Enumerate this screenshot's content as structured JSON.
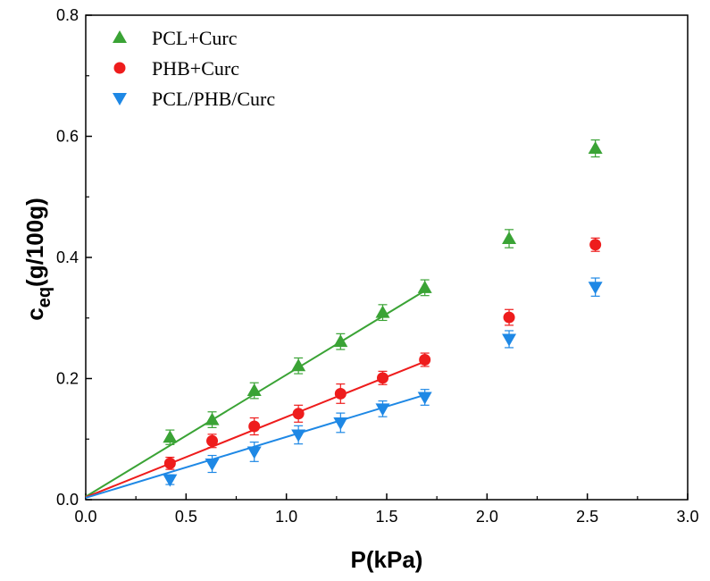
{
  "chart_data": {
    "type": "scatter",
    "xlabel": "P(kPa)",
    "ylabel_main": "c",
    "ylabel_sub": "eq",
    "ylabel_rest": "(g/100g)",
    "xlim": [
      0,
      3.0
    ],
    "ylim": [
      0,
      0.8
    ],
    "xticks": [
      "0.0",
      "0.5",
      "1.0",
      "1.5",
      "2.0",
      "2.5",
      "3.0"
    ],
    "yticks": [
      "0.0",
      "0.2",
      "0.4",
      "0.6",
      "0.8"
    ],
    "xtick_values": [
      0,
      0.5,
      1.0,
      1.5,
      2.0,
      2.5,
      3.0
    ],
    "ytick_values": [
      0,
      0.2,
      0.4,
      0.6,
      0.8
    ],
    "grid": false,
    "legend_position": "top-left",
    "series": [
      {
        "name": "PCL+Curc",
        "marker": "triangle-up",
        "color": "#3aa335",
        "x": [
          0.42,
          0.63,
          0.84,
          1.06,
          1.27,
          1.48,
          1.69,
          2.11,
          2.54
        ],
        "y": [
          0.103,
          0.132,
          0.18,
          0.221,
          0.261,
          0.309,
          0.35,
          0.431,
          0.58
        ],
        "err": [
          0.012,
          0.013,
          0.013,
          0.013,
          0.013,
          0.013,
          0.013,
          0.015,
          0.014
        ],
        "fit": {
          "x": [
            0,
            1.69
          ],
          "y": [
            0.005,
            0.345
          ]
        }
      },
      {
        "name": "PHB+Curc",
        "marker": "circle",
        "color": "#ee1c1c",
        "x": [
          0.42,
          0.63,
          0.84,
          1.06,
          1.27,
          1.48,
          1.69,
          2.11,
          2.54
        ],
        "y": [
          0.06,
          0.097,
          0.121,
          0.142,
          0.175,
          0.201,
          0.231,
          0.301,
          0.421
        ],
        "err": [
          0.01,
          0.011,
          0.014,
          0.014,
          0.016,
          0.011,
          0.011,
          0.013,
          0.011
        ],
        "fit": {
          "x": [
            0,
            1.69
          ],
          "y": [
            0.004,
            0.228
          ]
        }
      },
      {
        "name": "PCL/PHB/Curc",
        "marker": "triangle-down",
        "color": "#1e88e5",
        "x": [
          0.42,
          0.63,
          0.84,
          1.06,
          1.27,
          1.48,
          1.69,
          2.11,
          2.54
        ],
        "y": [
          0.033,
          0.059,
          0.079,
          0.107,
          0.127,
          0.15,
          0.169,
          0.265,
          0.351
        ],
        "err": [
          0.008,
          0.014,
          0.016,
          0.015,
          0.016,
          0.013,
          0.013,
          0.014,
          0.015
        ],
        "fit": {
          "x": [
            0,
            1.69
          ],
          "y": [
            0.003,
            0.173
          ]
        }
      }
    ]
  }
}
